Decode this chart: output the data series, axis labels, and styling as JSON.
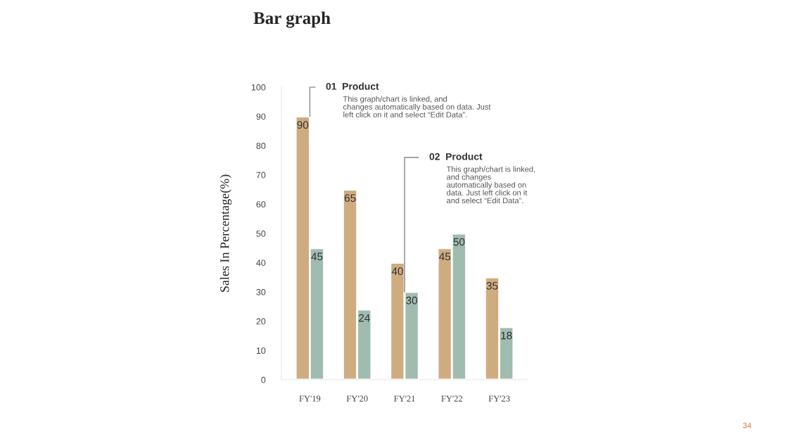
{
  "chart_data": {
    "type": "bar",
    "title": "Bar graph",
    "ylabel": "Sales In Percentage(%)",
    "categories": [
      "FY'19",
      "FY'20",
      "FY'21",
      "FY'22",
      "FY'23"
    ],
    "series": [
      {
        "color": "#cfac80",
        "values": [
          90,
          65,
          40,
          45,
          35
        ]
      },
      {
        "color": "#a0bcaf",
        "values": [
          45,
          24,
          30,
          50,
          18
        ]
      }
    ],
    "ylim": [
      0,
      100
    ],
    "yticks": [
      0,
      10,
      20,
      30,
      40,
      50,
      60,
      70,
      80,
      90,
      100
    ],
    "data_labels": true,
    "grid": false,
    "legend": false,
    "annotations": [
      {
        "text": "01  Product\nThis graph/chart is linked, and\nchanges automatically based on data. Just\nleft click on it and select “Edit Data”.",
        "x": "FY'19",
        "y": 90
      },
      {
        "text": "02  Product\nThis graph/chart is linked,\nand changes\nautomatically based on\ndata. Just left click on it\nand select “Edit Data”.",
        "x": "FY'21",
        "y": 30
      },
      "34"
    ]
  }
}
